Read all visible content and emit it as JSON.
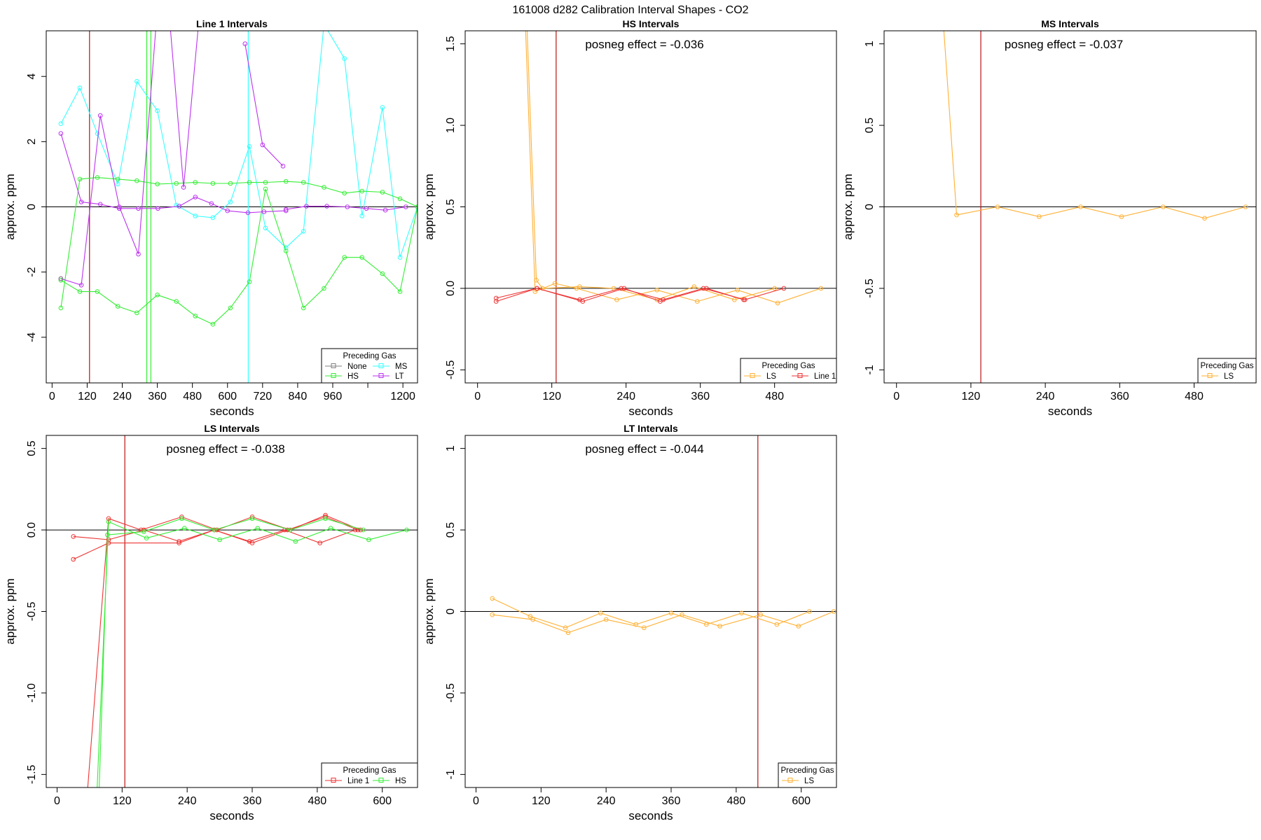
{
  "figure": {
    "title": "161008  d282   Calibration Interval Shapes - CO2"
  },
  "chart_data": [
    {
      "type": "line",
      "title": "Line 1 Intervals",
      "xlabel": "seconds",
      "ylabel": "approx. ppm",
      "xlim": [
        -20,
        1250
      ],
      "ylim": [
        -5.4,
        5.4
      ],
      "xticks": [
        0,
        120,
        240,
        360,
        480,
        600,
        720,
        840,
        960,
        1080,
        1200
      ],
      "xticklabels": [
        "0",
        "120",
        "240",
        "360",
        "480",
        "600",
        "720",
        "840",
        "960",
        "",
        "1200"
      ],
      "yticks": [
        -4,
        -2,
        0,
        2,
        4
      ],
      "annotation": "",
      "hline": 0,
      "legend": {
        "title": "Preceding Gas",
        "position": "bottom-right",
        "cols": 2,
        "entries": [
          {
            "label": "None",
            "color": "#808080"
          },
          {
            "label": "MS",
            "color": "#33ffff"
          },
          {
            "label": "HS",
            "color": "#33ee33"
          },
          {
            "label": "LT",
            "color": "#bb33ee"
          }
        ]
      },
      "vlines": [
        {
          "x": 128,
          "color": "#bb1111"
        },
        {
          "x": 324,
          "color": "#33ee33"
        },
        {
          "x": 338,
          "color": "#33ee33"
        },
        {
          "x": 671,
          "color": "#33ffff"
        }
      ],
      "series": [
        {
          "name": "MS",
          "color": "#33ffff",
          "x": [
            30,
            95,
            155,
            225,
            290,
            360,
            425,
            490,
            550,
            610,
            675,
            730,
            800,
            860,
            930,
            1000,
            1060,
            1130,
            1190,
            1250
          ],
          "y": [
            2.55,
            3.65,
            2.25,
            0.7,
            3.85,
            2.95,
            0.05,
            -0.28,
            -0.33,
            0.15,
            1.85,
            -0.65,
            -1.25,
            -0.75,
            5.6,
            4.55,
            -0.28,
            3.05,
            -1.55,
            0.0
          ]
        },
        {
          "name": "HS",
          "color": "#33ee33",
          "x": [
            30,
            95,
            155,
            225,
            290,
            360,
            425,
            490,
            550,
            610,
            675,
            730,
            800,
            860,
            930,
            1000,
            1060,
            1130,
            1190,
            1250
          ],
          "y": [
            -3.1,
            0.85,
            0.9,
            0.85,
            0.8,
            0.7,
            0.72,
            0.75,
            0.72,
            0.72,
            0.75,
            0.75,
            0.78,
            0.75,
            0.6,
            0.42,
            0.48,
            0.45,
            0.25,
            0.0
          ]
        },
        {
          "name": "HS",
          "color": "#33ee33",
          "x": [
            30,
            95,
            155,
            225,
            290,
            360,
            425,
            490,
            550,
            610,
            675,
            730,
            800,
            860,
            930,
            1000,
            1060,
            1130,
            1190,
            1250
          ],
          "y": [
            -2.25,
            -2.6,
            -2.6,
            -3.05,
            -3.25,
            -2.7,
            -2.9,
            -3.35,
            -3.6,
            -3.1,
            -2.3,
            0.55,
            -1.35,
            -3.1,
            -2.5,
            -1.55,
            -1.55,
            -2.05,
            -2.6,
            0.0
          ]
        },
        {
          "name": "LT",
          "color": "#bb33ee",
          "x": [
            30,
            100,
            165,
            230
          ],
          "y": [
            2.25,
            0.15,
            0.08,
            -0.05
          ]
        },
        {
          "name": "LT",
          "color": "#bb33ee",
          "x": [
            30,
            100,
            165,
            230,
            295,
            362
          ],
          "y": [
            -2.2,
            -2.4,
            2.8,
            0.0,
            -1.45,
            6.3
          ]
        },
        {
          "name": "LT",
          "color": "#bb33ee",
          "x": [
            230,
            295,
            362,
            435,
            490,
            545,
            600,
            670,
            725,
            800
          ],
          "y": [
            -0.05,
            -0.05,
            -0.05,
            0.02,
            0.3,
            0.1,
            -0.12,
            -0.18,
            -0.15,
            -0.12
          ]
        },
        {
          "name": "LT",
          "color": "#bb33ee",
          "x": [
            395,
            450,
            510
          ],
          "y": [
            6.5,
            0.6,
            6.5
          ]
        },
        {
          "name": "LT",
          "color": "#bb33ee",
          "x": [
            660,
            720,
            790
          ],
          "y": [
            5.0,
            1.9,
            1.25
          ]
        },
        {
          "name": "LT",
          "color": "#bb33ee",
          "x": [
            800,
            870,
            940,
            1010,
            1075,
            1140,
            1210
          ],
          "y": [
            -0.08,
            0.02,
            0.02,
            0.0,
            -0.05,
            -0.1,
            0.0
          ]
        },
        {
          "name": "None",
          "color": "#808080",
          "x": [
            30
          ],
          "y": [
            -2.2
          ]
        }
      ]
    },
    {
      "type": "line",
      "title": "HS Intervals",
      "xlabel": "seconds",
      "ylabel": "approx. ppm",
      "xlim": [
        -20,
        580
      ],
      "ylim": [
        -0.58,
        1.58
      ],
      "xticks": [
        0,
        120,
        240,
        360,
        480
      ],
      "xticklabels": [
        "0",
        "120",
        "240",
        "360",
        "480"
      ],
      "yticks": [
        -0.5,
        0.0,
        0.5,
        1.0,
        1.5
      ],
      "annotation": "posneg effect = -0.036",
      "hline": 0,
      "legend": {
        "title": "Preceding Gas",
        "position": "bottom-right",
        "cols": 2,
        "entries": [
          {
            "label": "LS",
            "color": "#ffb033"
          },
          {
            "label": "Line 1",
            "color": "#ee3333"
          }
        ]
      },
      "vlines": [
        {
          "x": 127,
          "color": "#bb1111"
        }
      ],
      "series": [
        {
          "name": "LS",
          "color": "#ffb033",
          "x": [
            77,
            93,
            125,
            160,
            225,
            290,
            355,
            420,
            485,
            555
          ],
          "y": [
            1.65,
            -0.02,
            0.03,
            0.0,
            -0.07,
            -0.01,
            -0.08,
            -0.01,
            -0.09,
            0.0
          ]
        },
        {
          "name": "LS",
          "color": "#ffb033",
          "x": [
            80,
            95,
            105,
            165,
            220,
            290,
            350,
            415,
            480
          ],
          "y": [
            1.6,
            0.05,
            0.0,
            0.01,
            0.0,
            -0.07,
            0.01,
            -0.07,
            0.0
          ]
        },
        {
          "name": "Line 1",
          "color": "#ee3333",
          "x": [
            30,
            96,
            165,
            232,
            300,
            365,
            432,
            495
          ],
          "y": [
            -0.06,
            0.0,
            -0.07,
            0.0,
            -0.07,
            0.0,
            -0.07,
            0.0
          ]
        },
        {
          "name": "Line 1",
          "color": "#ee3333",
          "x": [
            30,
            96,
            170,
            237,
            295,
            370,
            430
          ],
          "y": [
            -0.08,
            0.0,
            -0.08,
            0.0,
            -0.08,
            0.0,
            -0.07
          ]
        }
      ]
    },
    {
      "type": "line",
      "title": "MS Intervals",
      "xlabel": "seconds",
      "ylabel": "approx. ppm",
      "xlim": [
        -20,
        580
      ],
      "ylim": [
        -1.08,
        1.08
      ],
      "xticks": [
        0,
        120,
        240,
        360,
        480
      ],
      "xticklabels": [
        "0",
        "120",
        "240",
        "360",
        "480"
      ],
      "yticks": [
        -1.0,
        -0.5,
        0.0,
        0.5,
        1.0
      ],
      "annotation": "posneg effect = -0.037",
      "hline": 0,
      "legend": {
        "title": "Preceding Gas",
        "position": "bottom-right",
        "cols": 1,
        "entries": [
          {
            "label": "LS",
            "color": "#ffb033"
          }
        ]
      },
      "vlines": [
        {
          "x": 136,
          "color": "#bb1111"
        }
      ],
      "series": [
        {
          "name": "LS",
          "color": "#ffb033",
          "x": [
            76,
            97,
            163,
            230,
            297,
            363,
            430,
            497,
            563
          ],
          "y": [
            1.1,
            -0.05,
            0.0,
            -0.06,
            0.0,
            -0.06,
            0.0,
            -0.07,
            0.0
          ]
        }
      ]
    },
    {
      "type": "line",
      "title": "LS Intervals",
      "xlabel": "seconds",
      "ylabel": "approx. ppm",
      "xlim": [
        -20,
        665
      ],
      "ylim": [
        -1.58,
        0.58
      ],
      "xticks": [
        0,
        120,
        240,
        360,
        480,
        600
      ],
      "xticklabels": [
        "0",
        "120",
        "240",
        "360",
        "480",
        "600"
      ],
      "yticks": [
        -1.5,
        -1.0,
        -0.5,
        0.0,
        0.5
      ],
      "annotation": "posneg effect = -0.038",
      "hline": 0,
      "legend": {
        "title": "Preceding Gas",
        "position": "bottom-right",
        "cols": 2,
        "entries": [
          {
            "label": "Line 1",
            "color": "#ee3333"
          },
          {
            "label": "HS",
            "color": "#33ee33"
          }
        ]
      },
      "vlines": [
        {
          "x": 125,
          "color": "#bb1111"
        }
      ],
      "series": [
        {
          "name": "Line 1",
          "color": "#ee3333",
          "x": [
            30,
            95,
            160,
            225,
            290,
            355,
            420,
            485,
            550
          ],
          "y": [
            -0.04,
            -0.06,
            0.0,
            -0.07,
            0.0,
            -0.07,
            0.0,
            -0.08,
            0.0
          ]
        },
        {
          "name": "Line 1",
          "color": "#ee3333",
          "x": [
            30,
            95,
            225,
            290,
            360,
            425,
            495,
            555
          ],
          "y": [
            -0.18,
            -0.08,
            -0.08,
            0.0,
            -0.08,
            0.0,
            0.08,
            0.0
          ]
        },
        {
          "name": "Line 1",
          "color": "#ee3333",
          "x": [
            55,
            95,
            155,
            230,
            295,
            360,
            430,
            495,
            560
          ],
          "y": [
            -1.65,
            0.07,
            0.0,
            0.08,
            0.0,
            0.08,
            0.0,
            0.09,
            0.0
          ]
        },
        {
          "name": "HS",
          "color": "#33ee33",
          "x": [
            73,
            95,
            165,
            235,
            300,
            370,
            440,
            505,
            575,
            645
          ],
          "y": [
            -1.65,
            0.05,
            -0.05,
            0.01,
            -0.06,
            0.01,
            -0.07,
            0.01,
            -0.06,
            0.0
          ]
        },
        {
          "name": "HS",
          "color": "#33ee33",
          "x": [
            77,
            93,
            160,
            230,
            290,
            360,
            430,
            495,
            565
          ],
          "y": [
            -1.65,
            -0.03,
            -0.01,
            0.07,
            0.0,
            0.07,
            0.0,
            0.07,
            0.0
          ]
        }
      ]
    },
    {
      "type": "line",
      "title": "LT Intervals",
      "xlabel": "seconds",
      "ylabel": "approx. ppm",
      "xlim": [
        -20,
        665
      ],
      "ylim": [
        -1.08,
        1.08
      ],
      "xticks": [
        0,
        120,
        240,
        360,
        480,
        600
      ],
      "xticklabels": [
        "0",
        "120",
        "240",
        "360",
        "480",
        "600"
      ],
      "yticks": [
        -1.0,
        -0.5,
        0.0,
        0.5,
        1.0
      ],
      "annotation": "posneg effect = -0.044",
      "hline": 0,
      "legend": {
        "title": "Preceding Gas",
        "position": "bottom-right",
        "cols": 1,
        "entries": [
          {
            "label": "LS",
            "color": "#ffb033"
          }
        ]
      },
      "vlines": [
        {
          "x": 520,
          "color": "#bb1111"
        }
      ],
      "series": [
        {
          "name": "LS",
          "color": "#ffb033",
          "x": [
            30,
            100,
            165,
            230,
            295,
            360,
            425,
            490,
            555,
            615
          ],
          "y": [
            0.08,
            -0.03,
            -0.1,
            -0.01,
            -0.08,
            -0.01,
            -0.08,
            -0.01,
            -0.08,
            0.0
          ]
        },
        {
          "name": "LS",
          "color": "#ffb033",
          "x": [
            30,
            105,
            170,
            240,
            310,
            380,
            450,
            525,
            595,
            660
          ],
          "y": [
            -0.02,
            -0.05,
            -0.13,
            -0.05,
            -0.1,
            -0.02,
            -0.09,
            -0.02,
            -0.09,
            0.0
          ]
        }
      ]
    }
  ]
}
